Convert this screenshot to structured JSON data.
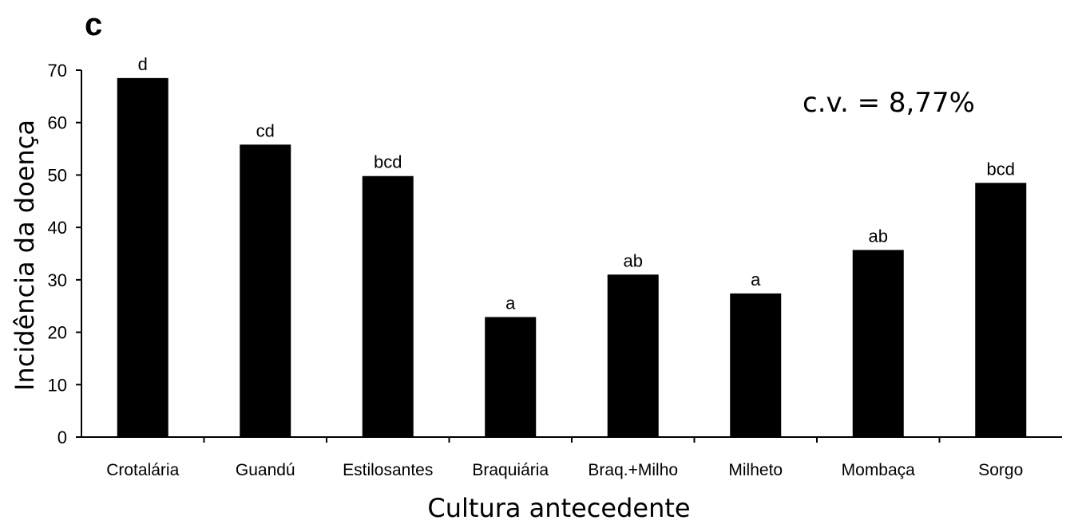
{
  "panel_label": "c",
  "annotation": "c.v. = 8,77%",
  "colors": {
    "bar": "#000000",
    "axis": "#000000",
    "background": "#ffffff"
  },
  "chart_data": {
    "type": "bar",
    "categories": [
      "Crotalária",
      "Guandú",
      "Estilosantes",
      "Braquiária",
      "Braq.+Milho",
      "Milheto",
      "Mombaça",
      "Sorgo"
    ],
    "values": [
      68.5,
      55.8,
      49.8,
      22.9,
      31.0,
      27.4,
      35.7,
      48.5
    ],
    "bar_labels": [
      "d",
      "cd",
      "bcd",
      "a",
      "ab",
      "a",
      "ab",
      "bcd"
    ],
    "xlabel": "Cultura antecedente",
    "ylabel": "Incidência da doença",
    "ylim": [
      0,
      70
    ],
    "yticks": [
      0,
      10,
      20,
      30,
      40,
      50,
      60,
      70
    ],
    "grid": false,
    "legend": "none"
  }
}
